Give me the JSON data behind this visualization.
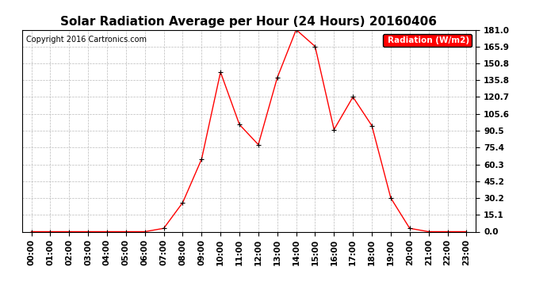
{
  "title": "Solar Radiation Average per Hour (24 Hours) 20160406",
  "copyright": "Copyright 2016 Cartronics.com",
  "legend_label": "Radiation (W/m2)",
  "hours": [
    "00:00",
    "01:00",
    "02:00",
    "03:00",
    "04:00",
    "05:00",
    "06:00",
    "07:00",
    "08:00",
    "09:00",
    "10:00",
    "11:00",
    "12:00",
    "13:00",
    "14:00",
    "15:00",
    "16:00",
    "17:00",
    "18:00",
    "19:00",
    "20:00",
    "21:00",
    "22:00",
    "23:00"
  ],
  "values": [
    0.0,
    0.0,
    0.0,
    0.0,
    0.0,
    0.0,
    0.0,
    3.0,
    26.0,
    65.0,
    143.0,
    96.0,
    78.0,
    138.0,
    181.0,
    166.0,
    91.5,
    120.7,
    95.0,
    30.2,
    3.0,
    0.0,
    0.0,
    0.0
  ],
  "yticks": [
    0.0,
    15.1,
    30.2,
    45.2,
    60.3,
    75.4,
    90.5,
    105.6,
    120.7,
    135.8,
    150.8,
    165.9,
    181.0
  ],
  "ymax": 181.0,
  "line_color": "red",
  "marker_color": "black",
  "bg_color": "#ffffff",
  "grid_color": "#bbbbbb",
  "legend_bg": "red",
  "legend_text_color": "white",
  "title_fontsize": 11,
  "copyright_fontsize": 7,
  "tick_fontsize": 7.5,
  "ylabel_fontsize": 7.5
}
